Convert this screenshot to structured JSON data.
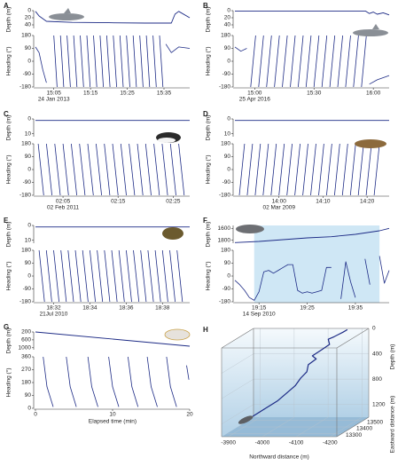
{
  "chart_data": [
    {
      "type": "tag-panel",
      "label": "A",
      "color": "#1c2a85",
      "date": "24 Jan 2013",
      "xlim": [
        0,
        42
      ],
      "xticks": [
        {
          "value": 5,
          "label": "15:05"
        },
        {
          "value": 15,
          "label": "15:15"
        },
        {
          "value": 25,
          "label": "15:25"
        },
        {
          "value": 35,
          "label": "15:35"
        }
      ],
      "depth": {
        "ylabel": "Depth (m)",
        "ylim": [
          0,
          50
        ],
        "yticks": [
          0,
          20,
          40
        ],
        "x": [
          0,
          1,
          3,
          10,
          20,
          30,
          37,
          38,
          39,
          42
        ],
        "values": [
          2,
          15,
          30,
          33,
          34,
          35,
          35,
          10,
          2,
          20
        ]
      },
      "heading": {
        "ylabel": "Heading (°)",
        "ylim": [
          -180,
          180
        ],
        "yticks": [
          180,
          90,
          0,
          -90,
          -180
        ],
        "x": [
          0,
          1,
          2,
          3,
          3,
          5,
          5.9,
          5.9,
          6.8,
          7.7,
          7.7,
          8.6,
          9.5,
          9.5,
          10.4,
          11.3,
          11.3,
          12.2,
          13.1,
          13.1,
          14,
          14.9,
          14.9,
          15.8,
          16.7,
          16.7,
          17.6,
          18.5,
          18.5,
          19.4,
          20.3,
          20.3,
          21.2,
          22.1,
          22.1,
          23,
          23.9,
          23.9,
          24.8,
          25.7,
          25.7,
          26.6,
          27.5,
          27.5,
          28.4,
          29.3,
          29.3,
          30.2,
          31.1,
          31.1,
          32,
          32.9,
          32.9,
          33.8,
          34.7,
          34.7,
          35.5,
          37,
          39,
          42
        ],
        "values": [
          100,
          60,
          -60,
          -150,
          null,
          180,
          -180,
          null,
          180,
          -180,
          null,
          180,
          -180,
          null,
          180,
          -180,
          null,
          180,
          -180,
          null,
          180,
          -180,
          null,
          180,
          -180,
          null,
          180,
          -180,
          null,
          180,
          -180,
          null,
          180,
          -180,
          null,
          180,
          -180,
          null,
          180,
          -180,
          null,
          180,
          -180,
          null,
          180,
          -180,
          null,
          180,
          -180,
          null,
          180,
          -180,
          null,
          180,
          -180,
          null,
          120,
          60,
          100,
          90
        ]
      }
    },
    {
      "type": "tag-panel",
      "label": "B",
      "color": "#1c2a85",
      "date": "25 Apr 2016",
      "xlim": [
        0,
        78
      ],
      "xticks": [
        {
          "value": 10,
          "label": "15:00"
        },
        {
          "value": 40,
          "label": "15:30"
        },
        {
          "value": 70,
          "label": "16:00"
        }
      ],
      "depth": {
        "ylabel": "Depth (m)",
        "ylim": [
          0,
          50
        ],
        "yticks": [
          0,
          20,
          40
        ],
        "x": [
          0,
          60,
          66,
          68,
          70,
          72,
          75,
          78
        ],
        "values": [
          1,
          1,
          1,
          8,
          4,
          10,
          6,
          12
        ]
      },
      "heading": {
        "ylabel": "Heading (°)",
        "ylim": [
          -180,
          180
        ],
        "yticks": [
          180,
          90,
          0,
          -90,
          -180
        ],
        "x": [
          0,
          3,
          6,
          7,
          8,
          10.5,
          10.5,
          12,
          14.5,
          14.5,
          16,
          18.5,
          18.5,
          20,
          22.5,
          22.5,
          24,
          26.5,
          26.5,
          28,
          30.5,
          30.5,
          32,
          34.5,
          34.5,
          36,
          38.5,
          38.5,
          40,
          42.5,
          42.5,
          44,
          46.5,
          46.5,
          48,
          50.5,
          50.5,
          52,
          54.5,
          54.5,
          56,
          58.5,
          58.5,
          60,
          62.5,
          62.5,
          64,
          66.5,
          66.5,
          68,
          72,
          76,
          78
        ],
        "values": [
          100,
          70,
          90,
          null,
          -180,
          180,
          null,
          -180,
          180,
          null,
          -180,
          180,
          null,
          -180,
          180,
          null,
          -180,
          180,
          null,
          -180,
          180,
          null,
          -180,
          180,
          null,
          -180,
          180,
          null,
          -180,
          180,
          null,
          -180,
          180,
          null,
          -180,
          180,
          null,
          -180,
          180,
          null,
          -180,
          180,
          null,
          -180,
          180,
          null,
          -180,
          180,
          null,
          -160,
          -130,
          -110,
          -100
        ]
      }
    },
    {
      "type": "tag-panel",
      "label": "C",
      "color": "#1c2a85",
      "date": "02 Feb 2011",
      "xlim": [
        0,
        28
      ],
      "xticks": [
        {
          "value": 5,
          "label": "02:05"
        },
        {
          "value": 15,
          "label": "02:15"
        },
        {
          "value": 25,
          "label": "02:25"
        }
      ],
      "depth": {
        "ylabel": "Depth (m)",
        "ylim": [
          0,
          12
        ],
        "yticks": [
          0,
          10
        ],
        "x": [
          0,
          28
        ],
        "values": [
          1,
          1
        ]
      },
      "heading": {
        "ylabel": "Heading (°)",
        "ylim": [
          -180,
          180
        ],
        "yticks": [
          180,
          90,
          0,
          -90,
          -180
        ],
        "x": [
          0.5,
          1.5,
          1.5,
          2,
          3,
          3,
          3.5,
          4.5,
          4.5,
          5,
          6,
          6,
          6.5,
          7.5,
          7.5,
          8,
          9,
          9,
          9.5,
          10.5,
          10.5,
          11,
          12,
          12,
          12.5,
          13.5,
          13.5,
          14,
          15,
          15,
          15.5,
          16.5,
          16.5,
          17,
          18,
          18,
          18.5,
          19.5,
          19.5,
          20,
          21,
          21,
          21.5,
          22.5,
          22.5,
          23,
          24,
          24,
          24.5,
          25.5,
          25.5,
          26,
          27,
          27
        ],
        "values": [
          180,
          -180,
          null,
          180,
          -180,
          null,
          180,
          -180,
          null,
          180,
          -180,
          null,
          180,
          -180,
          null,
          180,
          -180,
          null,
          180,
          -180,
          null,
          180,
          -180,
          null,
          180,
          -180,
          null,
          180,
          -180,
          null,
          180,
          -180,
          null,
          180,
          -180,
          null,
          180,
          -180,
          null,
          180,
          -180,
          null,
          180,
          -180,
          null,
          180,
          -180,
          null,
          180,
          -180,
          null,
          180,
          -180,
          null
        ]
      }
    },
    {
      "type": "tag-panel",
      "label": "D",
      "color": "#1c2a85",
      "date": "02 Mar 2009",
      "xlim": [
        0,
        35
      ],
      "xticks": [
        {
          "value": 10,
          "label": "14:00"
        },
        {
          "value": 20,
          "label": "14:10"
        },
        {
          "value": 30,
          "label": "14:20"
        }
      ],
      "depth": {
        "ylabel": "Depth (m)",
        "ylim": [
          0,
          12
        ],
        "yticks": [
          0,
          10
        ],
        "x": [
          0,
          35
        ],
        "values": [
          1,
          1
        ]
      },
      "heading": {
        "ylabel": "Heading (°)",
        "ylim": [
          -180,
          180
        ],
        "yticks": [
          180,
          90,
          0,
          -90,
          -180
        ],
        "x": [
          1,
          2.2,
          2.2,
          2.8,
          4,
          4,
          4.6,
          5.8,
          5.8,
          6.4,
          7.6,
          7.6,
          8.2,
          9.4,
          9.4,
          10,
          11.2,
          11.2,
          11.8,
          13,
          13,
          13.6,
          14.8,
          14.8,
          15.4,
          16.6,
          16.6,
          17.2,
          18.4,
          18.4,
          19,
          20.2,
          20.2,
          20.8,
          22,
          22,
          22.6,
          23.8,
          23.8,
          24.4,
          25.6,
          25.6,
          26.2,
          27.4,
          27.4,
          28,
          29.2,
          29.2,
          29.8,
          31,
          31,
          31.6,
          32.8,
          32.8
        ],
        "values": [
          -180,
          180,
          null,
          -180,
          180,
          null,
          -180,
          180,
          null,
          -180,
          180,
          null,
          -180,
          180,
          null,
          -180,
          180,
          null,
          -180,
          180,
          null,
          -180,
          180,
          null,
          -180,
          180,
          null,
          -180,
          180,
          null,
          -180,
          180,
          null,
          -180,
          180,
          null,
          -180,
          180,
          null,
          -180,
          180,
          null,
          -180,
          180,
          null,
          -180,
          180,
          null,
          -180,
          180,
          null,
          -180,
          180,
          null
        ]
      }
    },
    {
      "type": "tag-panel",
      "label": "E",
      "color": "#1c2a85",
      "date": "21Jul 2010",
      "xlim": [
        0,
        8.5
      ],
      "xticks": [
        {
          "value": 1,
          "label": "18:32"
        },
        {
          "value": 3,
          "label": "18:34"
        },
        {
          "value": 5,
          "label": "18:36"
        },
        {
          "value": 7,
          "label": "18:38"
        }
      ],
      "depth": {
        "ylabel": "Depth (m)",
        "ylim": [
          0,
          12
        ],
        "yticks": [
          0,
          10
        ],
        "x": [
          0,
          8.5
        ],
        "values": [
          1,
          1
        ]
      },
      "heading": {
        "ylabel": "Heading (°)",
        "ylim": [
          -180,
          180
        ],
        "yticks": [
          180,
          90,
          0,
          -90,
          -180
        ],
        "x": [
          0.2,
          0.5,
          0.5,
          0.6,
          0.9,
          0.9,
          1,
          1.3,
          1.3,
          1.4,
          1.7,
          1.7,
          1.8,
          2.1,
          2.1,
          2.2,
          2.5,
          2.5,
          2.6,
          2.9,
          2.9,
          3,
          3.3,
          3.3,
          3.4,
          3.7,
          3.7,
          3.8,
          4.1,
          4.1,
          4.2,
          4.5,
          4.5,
          4.6,
          4.9,
          4.9,
          5,
          5.3,
          5.3,
          5.4,
          5.7,
          5.7,
          5.8,
          6.1,
          6.1,
          6.2,
          6.5,
          6.5,
          6.6,
          6.9,
          6.9,
          7,
          7.3,
          7.3,
          7.4,
          7.7,
          7.7,
          7.8,
          8.1,
          8.1
        ],
        "values": [
          180,
          -180,
          null,
          180,
          -180,
          null,
          180,
          -180,
          null,
          180,
          -180,
          null,
          180,
          -180,
          null,
          180,
          -180,
          null,
          180,
          -180,
          null,
          180,
          -180,
          null,
          180,
          -180,
          null,
          180,
          -180,
          null,
          180,
          -180,
          null,
          180,
          -180,
          null,
          180,
          -180,
          null,
          180,
          -180,
          null,
          180,
          -180,
          null,
          180,
          -180,
          null,
          180,
          -180,
          null,
          180,
          -180,
          null,
          180,
          -180,
          null,
          180,
          -180,
          null
        ]
      }
    },
    {
      "type": "tag-panel",
      "label": "F",
      "color": "#1c2a85",
      "date": "14 Sep 2010",
      "shaded": [
        4,
        30
      ],
      "xlim": [
        0,
        32
      ],
      "xticks": [
        {
          "value": 5,
          "label": "19:15"
        },
        {
          "value": 15,
          "label": "19:25"
        },
        {
          "value": 25,
          "label": "19:35"
        }
      ],
      "depth": {
        "ylabel": "Depth (m)",
        "ylim": [
          1550,
          1850
        ],
        "yticks": [
          1600,
          1800
        ],
        "x": [
          0,
          5,
          10,
          15,
          20,
          25,
          30,
          32
        ],
        "values": [
          1840,
          1820,
          1790,
          1760,
          1740,
          1700,
          1640,
          1600
        ]
      },
      "heading": {
        "ylabel": "Heading (°)",
        "ylim": [
          -180,
          180
        ],
        "yticks": [
          180,
          90,
          0,
          -90,
          -180
        ],
        "x": [
          0,
          1,
          2,
          3,
          4,
          5,
          6,
          7,
          8,
          9,
          10,
          11,
          12,
          13,
          14,
          15,
          16,
          17,
          18,
          19,
          20,
          21,
          22,
          23,
          24,
          25,
          26,
          27,
          28,
          29,
          30,
          31,
          32
        ],
        "values": [
          -30,
          -60,
          -100,
          -150,
          -170,
          -110,
          30,
          40,
          20,
          40,
          60,
          80,
          80,
          -100,
          -120,
          -110,
          -120,
          -110,
          -100,
          60,
          60,
          null,
          -160,
          100,
          -40,
          -150,
          null,
          120,
          -60,
          null,
          140,
          -50,
          40
        ]
      }
    },
    {
      "type": "tag-panel",
      "label": "G",
      "color": "#1c2a85",
      "xlabel": "Elapsed time (min)",
      "xlim": [
        0,
        20
      ],
      "xticks": [
        0,
        10,
        20
      ],
      "depth": {
        "ylabel": "Depth (m)",
        "ylim": [
          200,
          1100
        ],
        "yticks": [
          200,
          600,
          1000
        ],
        "x": [
          0,
          20
        ],
        "values": [
          200,
          920
        ]
      },
      "heading": {
        "ylabel": "Heading (°)",
        "ylim": [
          0,
          360
        ],
        "yticks": [
          360,
          270,
          180,
          90,
          0
        ],
        "x": [
          1,
          1.5,
          2.3,
          2.3,
          4,
          4.5,
          5.3,
          5.3,
          6.8,
          7.3,
          8.1,
          8.1,
          9.5,
          10,
          10.8,
          10.8,
          12,
          12.5,
          13.3,
          13.3,
          14.5,
          15,
          15.8,
          15.8,
          17,
          17.5,
          18.3,
          18.3,
          19.6,
          19.9
        ],
        "values": [
          360,
          150,
          10,
          null,
          360,
          150,
          10,
          null,
          360,
          150,
          10,
          null,
          360,
          150,
          10,
          null,
          360,
          150,
          10,
          null,
          360,
          150,
          10,
          null,
          360,
          150,
          10,
          null,
          300,
          200
        ]
      }
    },
    {
      "type": "line3d",
      "label": "H",
      "color": "#1c2a85",
      "xlabel": "Northward distance (m)",
      "ylabel": "Eastward distance (m)",
      "zlabel": "Depth (m)",
      "xlim": [
        -3880,
        -4220
      ],
      "ylim": [
        13250,
        13550
      ],
      "zlim": [
        0,
        1400
      ],
      "xticks": [
        -3900,
        -4000,
        -4100,
        -4200
      ],
      "yticks": [
        13300,
        13400,
        13500
      ],
      "zticks": [
        0,
        400,
        800,
        1200
      ],
      "x": [
        -3950,
        -3980,
        -4010,
        -4030,
        -4050,
        -4060,
        -4075,
        -4070,
        -4090,
        -4085,
        -4105,
        -4120,
        -4110,
        -4130,
        -4150,
        -4160
      ],
      "y": [
        13320,
        13340,
        13360,
        13380,
        13400,
        13420,
        13430,
        13460,
        13470,
        13450,
        13470,
        13500,
        13520,
        13510,
        13530,
        13540
      ],
      "z": [
        1150,
        1050,
        950,
        850,
        750,
        650,
        560,
        480,
        400,
        330,
        260,
        200,
        140,
        90,
        40,
        10
      ]
    }
  ]
}
